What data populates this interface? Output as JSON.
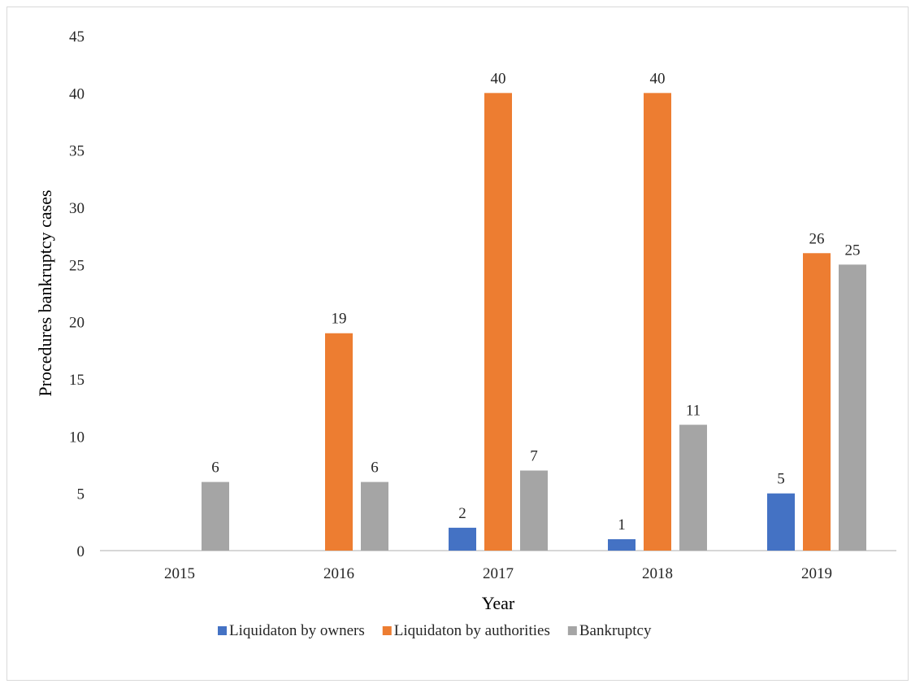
{
  "chart_data": {
    "type": "bar",
    "title": "",
    "xlabel": "Year",
    "ylabel": "Procedures bankruptcy cases",
    "categories": [
      "2015",
      "2016",
      "2017",
      "2018",
      "2019"
    ],
    "ylim": [
      0,
      45
    ],
    "yticks": [
      0,
      5,
      10,
      15,
      20,
      25,
      30,
      35,
      40,
      45
    ],
    "grid": false,
    "legend_position": "bottom",
    "series": [
      {
        "name": "Liquidaton by owners",
        "color": "#4472C4",
        "values": [
          null,
          null,
          2,
          1,
          5
        ]
      },
      {
        "name": "Liquidaton by authorities",
        "color": "#ED7D31",
        "values": [
          null,
          19,
          40,
          40,
          26
        ]
      },
      {
        "name": "Bankruptcy",
        "color": "#A5A5A5",
        "values": [
          6,
          6,
          7,
          11,
          25
        ]
      }
    ]
  }
}
